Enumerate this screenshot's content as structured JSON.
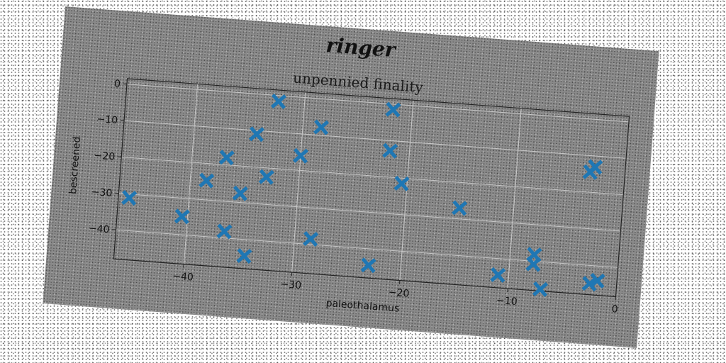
{
  "figure": {
    "suptitle": "ringer",
    "background": "#8a8a8a",
    "marker_color": "#1f77b4"
  },
  "chart_data": {
    "type": "scatter",
    "title": "unpennied finality",
    "xlabel": "paleothalamus",
    "ylabel": "bescreened",
    "xlim": [
      -46.5,
      0
    ],
    "ylim": [
      -48,
      1.5
    ],
    "xticks": [
      -40,
      -30,
      -20,
      -10,
      0
    ],
    "yticks": [
      0,
      -10,
      -20,
      -30,
      -40
    ],
    "grid": true,
    "marker": "X",
    "series": [
      {
        "points": [
          [
            -32.4,
            -1.6
          ],
          [
            -21.8,
            -1.5
          ],
          [
            -28.3,
            -7.8
          ],
          [
            -34.2,
            -11.0
          ],
          [
            -21.8,
            -12.8
          ],
          [
            -30.0,
            -16.0
          ],
          [
            -36.8,
            -18.0
          ],
          [
            -20.5,
            -21.5
          ],
          [
            -33.0,
            -22.5
          ],
          [
            -38.5,
            -24.7
          ],
          [
            -35.3,
            -27.5
          ],
          [
            -15.0,
            -27.0
          ],
          [
            -45.5,
            -31.0
          ],
          [
            -40.5,
            -35.0
          ],
          [
            -28.5,
            -38.5
          ],
          [
            -36.5,
            -38.2
          ],
          [
            -34.5,
            -44.5
          ],
          [
            -23.0,
            -44.5
          ],
          [
            -11.0,
            -44.5
          ],
          [
            -7.8,
            -38.2
          ],
          [
            -7.8,
            -40.8
          ],
          [
            -7.0,
            -47.5
          ],
          [
            -3.2,
            -14.5
          ],
          [
            -2.8,
            -13.0
          ],
          [
            -2.5,
            -45.0
          ],
          [
            -1.8,
            -44.0
          ]
        ]
      }
    ]
  }
}
